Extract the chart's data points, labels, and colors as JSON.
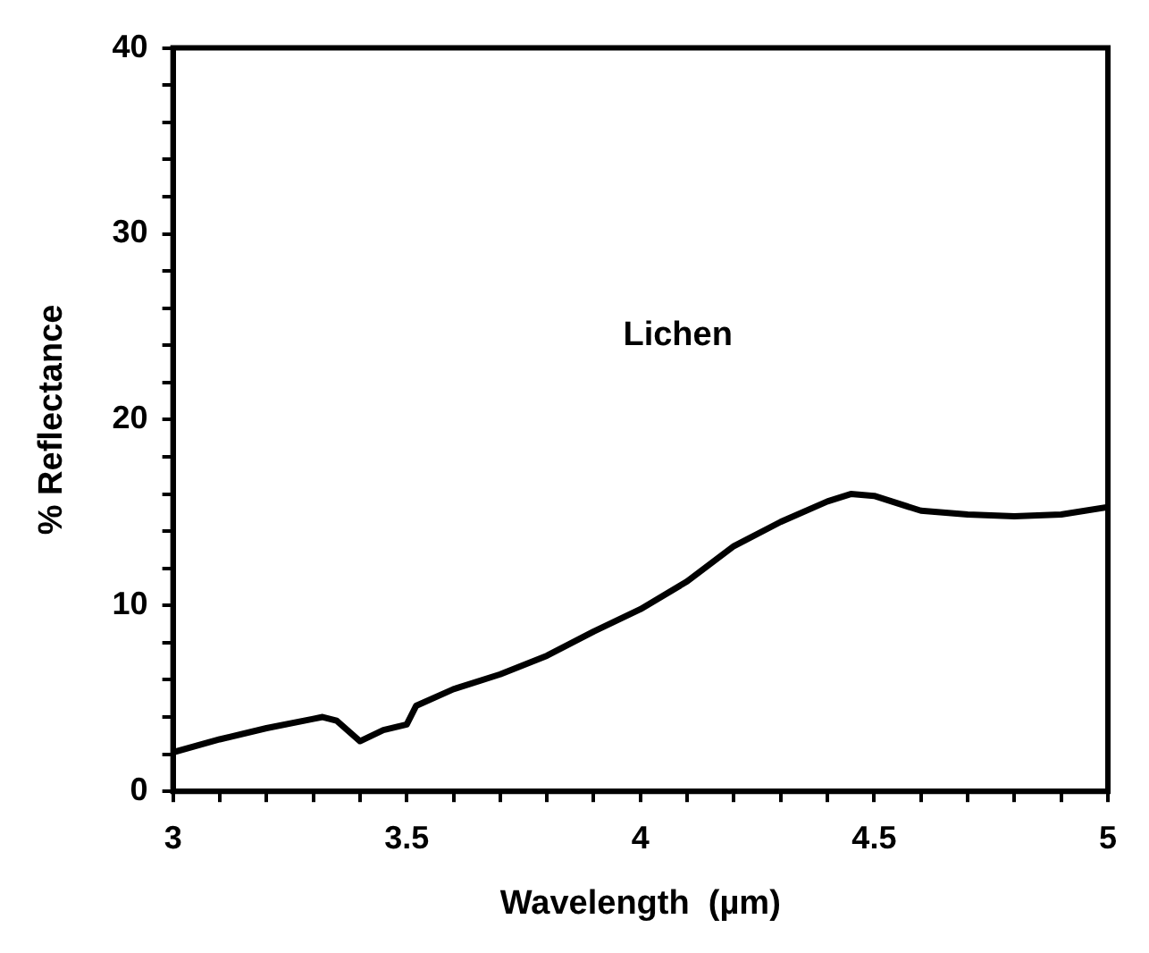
{
  "chart_data": {
    "type": "line",
    "xlabel": "Wavelength  (µm)",
    "ylabel": "% Reflectance",
    "annotations": [
      "Lichen"
    ],
    "x": [
      3,
      3.1,
      3.2,
      3.3,
      3.32,
      3.35,
      3.4,
      3.45,
      3.5,
      3.52,
      3.6,
      3.7,
      3.8,
      3.9,
      4,
      4.1,
      4.2,
      4.3,
      4.4,
      4.45,
      4.5,
      4.6,
      4.7,
      4.8,
      4.9,
      5
    ],
    "series": [
      {
        "color": "#000000",
        "values": [
          2.1,
          2.8,
          3.4,
          3.9,
          4.0,
          3.8,
          2.7,
          3.3,
          3.6,
          4.6,
          5.5,
          6.3,
          7.3,
          8.6,
          9.8,
          11.3,
          13.2,
          14.5,
          15.6,
          16.0,
          15.9,
          15.1,
          14.9,
          14.8,
          14.9,
          15.3
        ]
      }
    ],
    "xlim": [
      3,
      5
    ],
    "xticks": [
      3,
      {
        "value": 3.1,
        "label": null
      },
      {
        "value": 3.2,
        "label": null
      },
      {
        "value": 3.3,
        "label": null
      },
      {
        "value": 3.4,
        "label": null
      },
      3.5,
      {
        "value": 3.6,
        "label": null
      },
      {
        "value": 3.7,
        "label": null
      },
      {
        "value": 3.8,
        "label": null
      },
      {
        "value": 3.9,
        "label": null
      },
      4,
      {
        "value": 4.1,
        "label": null
      },
      {
        "value": 4.2,
        "label": null
      },
      {
        "value": 4.3,
        "label": null
      },
      {
        "value": 4.4,
        "label": null
      },
      4.5,
      {
        "value": 4.6,
        "label": null
      },
      {
        "value": 4.7,
        "label": null
      },
      {
        "value": 4.8,
        "label": null
      },
      {
        "value": 4.9,
        "label": null
      },
      5
    ],
    "ylim": [
      0,
      40
    ],
    "yticks": [
      0,
      {
        "value": 2,
        "label": null
      },
      {
        "value": 4,
        "label": null
      },
      {
        "value": 6,
        "label": null
      },
      {
        "value": 8,
        "label": null
      },
      10,
      {
        "value": 12,
        "label": null
      },
      {
        "value": 14,
        "label": null
      },
      {
        "value": 16,
        "label": null
      },
      {
        "value": 18,
        "label": null
      },
      20,
      {
        "value": 22,
        "label": null
      },
      {
        "value": 24,
        "label": null
      },
      {
        "value": 26,
        "label": null
      },
      {
        "value": 28,
        "label": null
      },
      30,
      {
        "value": 32,
        "label": null
      },
      {
        "value": 34,
        "label": null
      },
      {
        "value": 36,
        "label": null
      },
      {
        "value": 38,
        "label": null
      },
      40
    ],
    "grid": false,
    "legend": false,
    "marker": "none",
    "line_style": "solid"
  }
}
